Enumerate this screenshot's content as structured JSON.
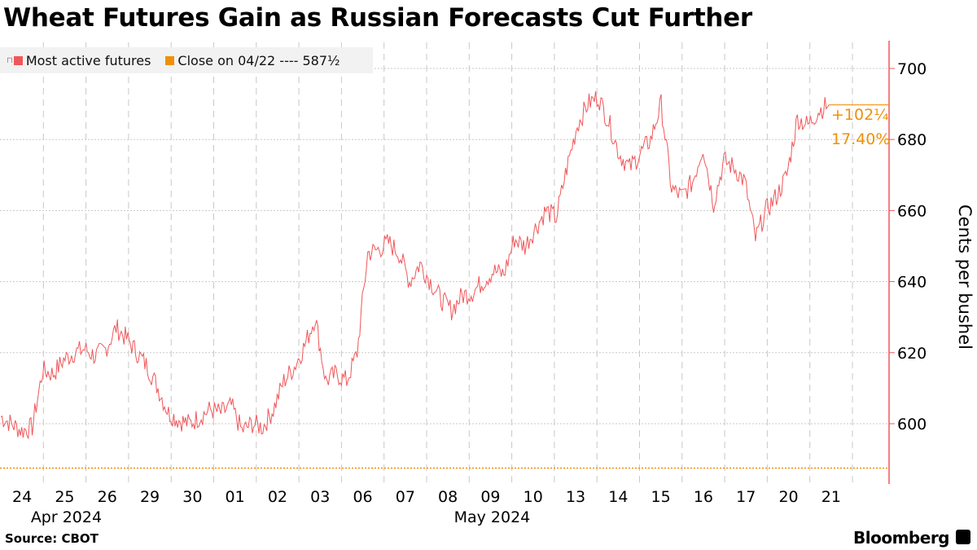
{
  "title": "Wheat Futures Gain as Russian Forecasts Cut Further",
  "legend": {
    "series_label": "Most active futures",
    "close_label": "Close on 04/22 ---- 587½"
  },
  "annotation": {
    "change": "+102¼",
    "percent": "17.40%"
  },
  "source": "Source: CBOT",
  "brand": "Bloomberg",
  "colors": {
    "series": "#f0575a",
    "close": "#f0900a",
    "axis": "#f0575a"
  },
  "chart_data": {
    "type": "line",
    "title": "Wheat Futures Gain as Russian Forecasts Cut Further",
    "ylabel": "Cents per bushel",
    "ylim": [
      583,
      707
    ],
    "yticks": [
      600,
      620,
      640,
      660,
      680,
      700
    ],
    "grid": true,
    "legend_position": "top-left",
    "reference_line": {
      "label": "Close on 04/22",
      "value": 587.5
    },
    "x_day_labels": [
      "24",
      "25",
      "26",
      "29",
      "30",
      "01",
      "02",
      "03",
      "06",
      "07",
      "08",
      "09",
      "10",
      "13",
      "14",
      "15",
      "16",
      "17",
      "20",
      "21"
    ],
    "x_month_labels": [
      {
        "label": "Apr 2024",
        "day_index": 1
      },
      {
        "label": "May 2024",
        "day_index": 11
      }
    ],
    "series": [
      {
        "name": "Most active futures",
        "values_quarter_day": [
          602,
          600,
          598,
          599,
          615,
          614,
          618,
          620,
          621,
          619,
          621,
          627,
          624,
          620,
          616,
          610,
          603,
          601,
          600,
          602,
          604,
          603,
          605,
          598,
          600,
          599,
          604,
          612,
          616,
          622,
          630,
          612,
          614,
          612,
          620,
          648,
          649,
          651,
          648,
          640,
          645,
          640,
          635,
          632,
          636,
          637,
          640,
          643,
          642,
          652,
          650,
          655,
          660,
          658,
          672,
          684,
          690,
          692,
          685,
          676,
          672,
          676,
          680,
          690,
          666,
          664,
          668,
          678,
          662,
          674,
          672,
          668,
          652,
          660,
          664,
          670,
          686,
          684,
          688,
          690
        ],
        "last": 689.75
      }
    ]
  }
}
